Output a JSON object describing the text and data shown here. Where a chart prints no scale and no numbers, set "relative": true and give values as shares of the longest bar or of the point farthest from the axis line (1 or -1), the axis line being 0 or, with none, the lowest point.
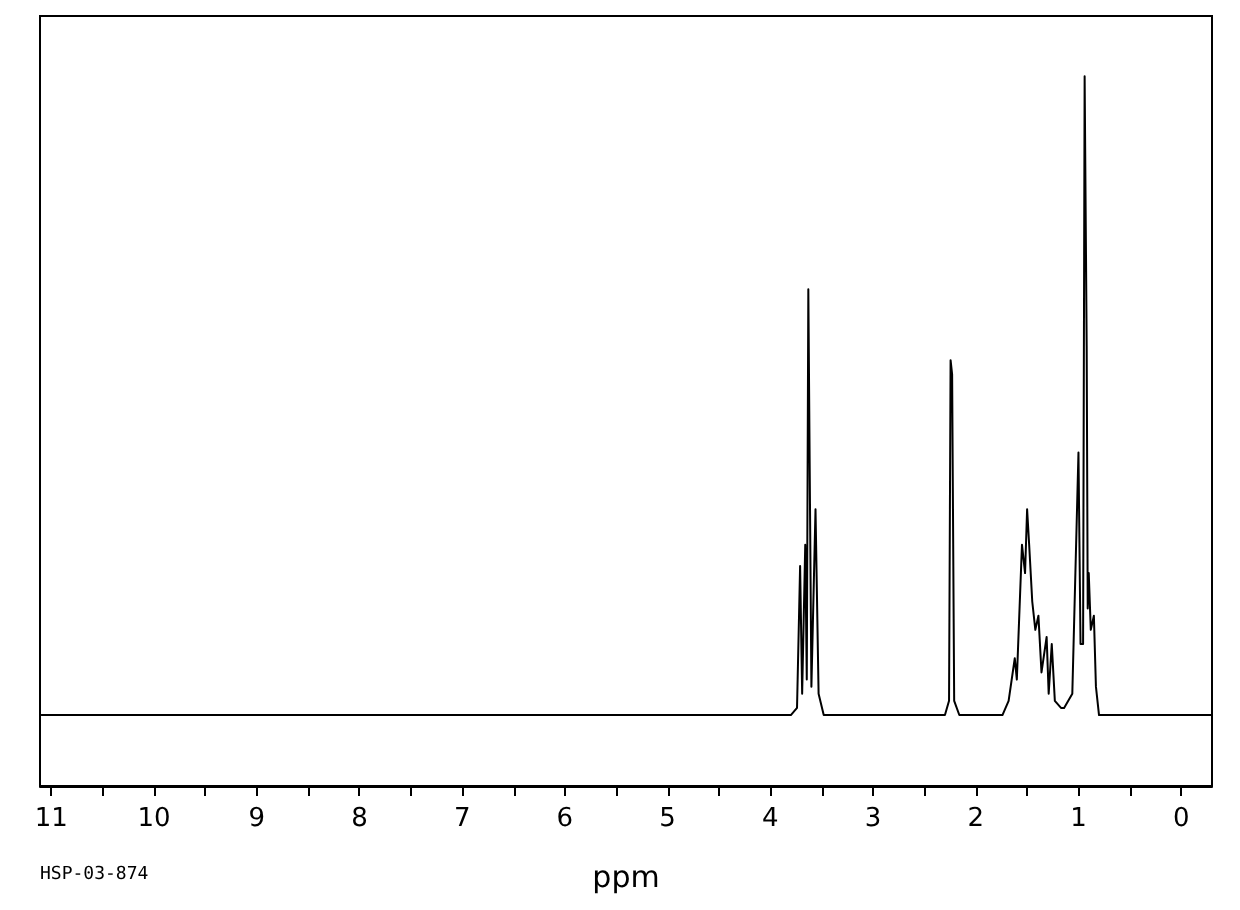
{
  "chart_data": {
    "type": "line",
    "relative": true,
    "xlabel": "ppm",
    "annotations": [
      "HSP-03-874"
    ],
    "xlim": [
      11.11,
      -0.3
    ],
    "xticks": [
      0,
      {
        "value": 0.5,
        "label": null
      },
      1,
      {
        "value": 1.5,
        "label": null
      },
      2,
      {
        "value": 2.5,
        "label": null
      },
      3,
      {
        "value": 3.5,
        "label": null
      },
      4,
      {
        "value": 4.5,
        "label": null
      },
      5,
      {
        "value": 5.5,
        "label": null
      },
      6,
      {
        "value": 6.5,
        "label": null
      },
      7,
      {
        "value": 7.5,
        "label": null
      },
      8,
      {
        "value": 8.5,
        "label": null
      },
      9,
      {
        "value": 9.5,
        "label": null
      },
      10,
      {
        "value": 10.5,
        "label": null
      },
      11
    ],
    "grid": false,
    "marker": "none",
    "line_style": "solid",
    "series": [
      {
        "color": "#000000",
        "x": [
          11.1,
          3.8,
          3.74,
          3.71,
          3.69,
          3.66,
          3.645,
          3.63,
          3.6,
          3.56,
          3.53,
          3.48,
          2.3,
          2.26,
          2.245,
          2.23,
          2.21,
          2.16,
          1.74,
          1.68,
          1.62,
          1.6,
          1.55,
          1.52,
          1.5,
          1.48,
          1.45,
          1.42,
          1.39,
          1.36,
          1.31,
          1.29,
          1.26,
          1.23,
          1.17,
          1.14,
          1.06,
          1.0,
          0.98,
          0.955,
          0.94,
          0.92,
          0.91,
          0.9,
          0.88,
          0.85,
          0.83,
          0.8,
          -0.3
        ],
        "values": [
          0.1,
          0.1,
          0.11,
          0.31,
          0.13,
          0.34,
          0.15,
          0.7,
          0.14,
          0.39,
          0.13,
          0.1,
          0.1,
          0.12,
          0.6,
          0.58,
          0.12,
          0.1,
          0.1,
          0.12,
          0.18,
          0.15,
          0.34,
          0.3,
          0.39,
          0.34,
          0.26,
          0.22,
          0.24,
          0.16,
          0.21,
          0.13,
          0.2,
          0.12,
          0.11,
          0.11,
          0.13,
          0.47,
          0.2,
          0.2,
          1.0,
          0.62,
          0.25,
          0.3,
          0.22,
          0.24,
          0.14,
          0.1,
          0.1
        ]
      }
    ]
  }
}
